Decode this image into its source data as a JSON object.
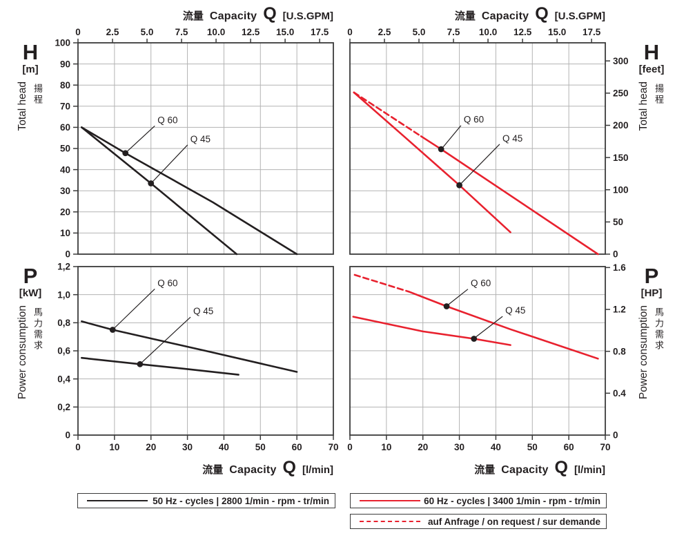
{
  "colors": {
    "red": "#e8212e",
    "black": "#231f20",
    "grid": "#b3b3b3",
    "axis": "#3a3a3a"
  },
  "units": {
    "gpm_to_lmin": 3.785
  },
  "axis_titles": {
    "top": {
      "cjk": "流量",
      "latin": "Capacity",
      "q": "Q",
      "unit": "[U.S.GPM]"
    },
    "bottom": {
      "cjk": "流量",
      "latin": "Capacity",
      "q": "Q",
      "unit": "[l/min]"
    }
  },
  "side_labels": {
    "head_left": {
      "symbol": "H",
      "unit": "[m]",
      "rotated": "Total head",
      "cjk": "揚程"
    },
    "head_right": {
      "symbol": "H",
      "unit": "[feet]",
      "rotated": "Total head",
      "cjk": "揚程"
    },
    "power_left": {
      "symbol": "P",
      "unit": "[kW]",
      "rotated": "Power consumption",
      "cjk": "馬力需求"
    },
    "power_right": {
      "symbol": "P",
      "unit": "[HP]",
      "rotated": "Power consumption",
      "cjk": "馬力需求"
    }
  },
  "legends": [
    {
      "line": "black-solid",
      "label": "50 Hz - cycles | 2800 1/min - rpm - tr/min"
    },
    {
      "line": "red-solid",
      "label": "60 Hz - cycles | 3400 1/min - rpm - tr/min"
    },
    {
      "line": "red-dashed",
      "label": "auf Anfrage / on request / sur demande"
    }
  ],
  "chart_data": [
    {
      "id": "head-50hz",
      "type": "line",
      "position": "top-left",
      "title": "Total head vs capacity, 50 Hz",
      "xlabel": "流量 Capacity Q [l/min]",
      "ylabel": "Total head H [m]",
      "x_domain": [
        0,
        70
      ],
      "x_grid_step": 10,
      "y_domain": [
        0,
        100
      ],
      "y_grid_values": [
        10,
        20,
        30,
        40,
        50,
        60,
        70,
        80,
        90
      ],
      "y_tick_side": "left",
      "y_ticks": [
        {
          "v": 0,
          "t": "0"
        },
        {
          "v": 10,
          "t": "10"
        },
        {
          "v": 20,
          "t": "20"
        },
        {
          "v": 30,
          "t": "30"
        },
        {
          "v": 40,
          "t": "40"
        },
        {
          "v": 50,
          "t": "50"
        },
        {
          "v": 60,
          "t": "60"
        },
        {
          "v": 70,
          "t": "70"
        },
        {
          "v": 80,
          "t": "80"
        },
        {
          "v": 90,
          "t": "90"
        },
        {
          "v": 100,
          "t": "100"
        }
      ],
      "top_ticks_gpm": [
        {
          "v": 0,
          "t": "0"
        },
        {
          "v": 2.5,
          "t": "2.5"
        },
        {
          "v": 5,
          "t": "5.0"
        },
        {
          "v": 7.5,
          "t": "7.5"
        },
        {
          "v": 10,
          "t": "10.0"
        },
        {
          "v": 12.5,
          "t": "12.5"
        },
        {
          "v": 15,
          "t": "15.0"
        },
        {
          "v": 17.5,
          "t": "17.5"
        }
      ],
      "bottom_tick_labels": null,
      "series": [
        {
          "name": "Q 60",
          "color": "black",
          "style": "solid",
          "points": [
            [
              1,
              60
            ],
            [
              13,
              47.8
            ],
            [
              37,
              24.5
            ],
            [
              60,
              0
            ]
          ],
          "marker": [
            13,
            47.8
          ],
          "label": "Q 60",
          "label_pos": [
            21.8,
            62
          ]
        },
        {
          "name": "Q 45",
          "color": "black",
          "style": "solid",
          "points": [
            [
              1,
              60
            ],
            [
              20,
              33.5
            ],
            [
              43.5,
              0
            ]
          ],
          "marker": [
            20,
            33.5
          ],
          "label": "Q 45",
          "label_pos": [
            30.8,
            53
          ]
        }
      ]
    },
    {
      "id": "head-60hz",
      "type": "line",
      "position": "top-right",
      "title": "Total head vs capacity, 60 Hz",
      "xlabel": "流量 Capacity Q [l/min]",
      "ylabel": "Total head H [feet]",
      "x_domain": [
        0,
        70
      ],
      "x_grid_step": 10,
      "y_domain": [
        0,
        328.1
      ],
      "y_grid_values": [
        32.8,
        65.6,
        98.4,
        131.2,
        164.0,
        196.9,
        229.7,
        262.5,
        295.3
      ],
      "y_tick_side": "right",
      "y_ticks": [
        {
          "v": 0,
          "t": "0"
        },
        {
          "v": 50,
          "t": "50"
        },
        {
          "v": 100,
          "t": "100"
        },
        {
          "v": 150,
          "t": "150"
        },
        {
          "v": 200,
          "t": "200"
        },
        {
          "v": 250,
          "t": "250"
        },
        {
          "v": 300,
          "t": "300"
        }
      ],
      "top_ticks_gpm": [
        {
          "v": 0,
          "t": "0"
        },
        {
          "v": 2.5,
          "t": "2.5"
        },
        {
          "v": 5,
          "t": "5.0"
        },
        {
          "v": 7.5,
          "t": "7.5"
        },
        {
          "v": 10,
          "t": "10.0"
        },
        {
          "v": 12.5,
          "t": "12.5"
        },
        {
          "v": 15,
          "t": "15.0"
        },
        {
          "v": 17.5,
          "t": "17.5"
        }
      ],
      "bottom_tick_labels": null,
      "series": [
        {
          "name": "Q 60 on request",
          "color": "red",
          "style": "dashed",
          "points": [
            [
              1.1,
              251
            ],
            [
              19.5,
              183
            ]
          ]
        },
        {
          "name": "Q 60",
          "color": "red",
          "style": "solid",
          "points": [
            [
              19.5,
              183
            ],
            [
              25,
              163
            ],
            [
              68,
              0
            ]
          ],
          "marker": [
            25,
            163
          ],
          "label": "Q 60",
          "label_pos": [
            31.2,
            204
          ]
        },
        {
          "name": "Q 45",
          "color": "red",
          "style": "solid",
          "points": [
            [
              1.1,
              251
            ],
            [
              15,
              182
            ],
            [
              30,
              107
            ],
            [
              44,
              34
            ]
          ],
          "marker": [
            30,
            107
          ],
          "label": "Q 45",
          "label_pos": [
            41.8,
            175
          ]
        }
      ]
    },
    {
      "id": "power-50hz",
      "type": "line",
      "position": "bottom-left",
      "title": "Power consumption vs capacity, 50 Hz",
      "xlabel": "流量 Capacity Q [l/min]",
      "ylabel": "Power consumption P [kW]",
      "x_domain": [
        0,
        70
      ],
      "x_grid_step": 10,
      "y_domain": [
        0,
        1.2
      ],
      "y_grid_values": [
        0.2,
        0.4,
        0.6,
        0.8,
        1.0
      ],
      "y_tick_side": "left",
      "y_ticks": [
        {
          "v": 0,
          "t": "0"
        },
        {
          "v": 0.2,
          "t": "0,2"
        },
        {
          "v": 0.4,
          "t": "0,4"
        },
        {
          "v": 0.6,
          "t": "0,6"
        },
        {
          "v": 0.8,
          "t": "0,8"
        },
        {
          "v": 1.0,
          "t": "1,0"
        },
        {
          "v": 1.2,
          "t": "1,2"
        }
      ],
      "top_ticks_gpm": null,
      "bottom_tick_labels": [
        "0",
        "10",
        "20",
        "30",
        "40",
        "50",
        "60",
        "70"
      ],
      "series": [
        {
          "name": "Q 60",
          "color": "black",
          "style": "solid",
          "points": [
            [
              1,
              0.81
            ],
            [
              9.5,
              0.75
            ],
            [
              35,
              0.6
            ],
            [
              60,
              0.45
            ]
          ],
          "marker": [
            9.5,
            0.75
          ],
          "label": "Q 60",
          "label_pos": [
            21.8,
            1.06
          ]
        },
        {
          "name": "Q 45",
          "color": "black",
          "style": "solid",
          "points": [
            [
              1,
              0.55
            ],
            [
              17,
              0.505
            ],
            [
              30,
              0.47
            ],
            [
              44,
              0.43
            ]
          ],
          "marker": [
            17,
            0.505
          ],
          "label": "Q 45",
          "label_pos": [
            31.6,
            0.86
          ]
        }
      ]
    },
    {
      "id": "power-60hz",
      "type": "line",
      "position": "bottom-right",
      "title": "Power consumption vs capacity, 60 Hz",
      "xlabel": "流量 Capacity Q [l/min]",
      "ylabel": "Power consumption P [HP]",
      "x_domain": [
        0,
        70
      ],
      "x_grid_step": 10,
      "y_domain": [
        0,
        1.609
      ],
      "y_grid_values": [
        0.268,
        0.536,
        0.805,
        1.073,
        1.341
      ],
      "y_tick_side": "right",
      "y_ticks": [
        {
          "v": 0,
          "t": "0"
        },
        {
          "v": 0.4,
          "t": "0.4"
        },
        {
          "v": 0.8,
          "t": "0.8"
        },
        {
          "v": 1.2,
          "t": "1.2"
        },
        {
          "v": 1.6,
          "t": "1.6"
        }
      ],
      "top_ticks_gpm": null,
      "bottom_tick_labels": [
        "0",
        "10",
        "20",
        "30",
        "40",
        "50",
        "60",
        "70"
      ],
      "series": [
        {
          "name": "Q 60 on request",
          "color": "red",
          "style": "dashed",
          "points": [
            [
              1.3,
              1.53
            ],
            [
              16.1,
              1.37
            ]
          ]
        },
        {
          "name": "Q 60",
          "color": "red",
          "style": "solid",
          "points": [
            [
              16.1,
              1.37
            ],
            [
              26.5,
              1.23
            ],
            [
              44,
              1.01
            ],
            [
              68,
              0.73
            ]
          ],
          "marker": [
            26.5,
            1.23
          ],
          "label": "Q 60",
          "label_pos": [
            33.1,
            1.42
          ]
        },
        {
          "name": "Q 45",
          "color": "red",
          "style": "solid",
          "points": [
            [
              0.9,
              1.13
            ],
            [
              20,
              0.99
            ],
            [
              34,
              0.92
            ],
            [
              44,
              0.86
            ]
          ],
          "marker": [
            34,
            0.92
          ],
          "label": "Q 45",
          "label_pos": [
            42.6,
            1.16
          ]
        }
      ]
    }
  ]
}
